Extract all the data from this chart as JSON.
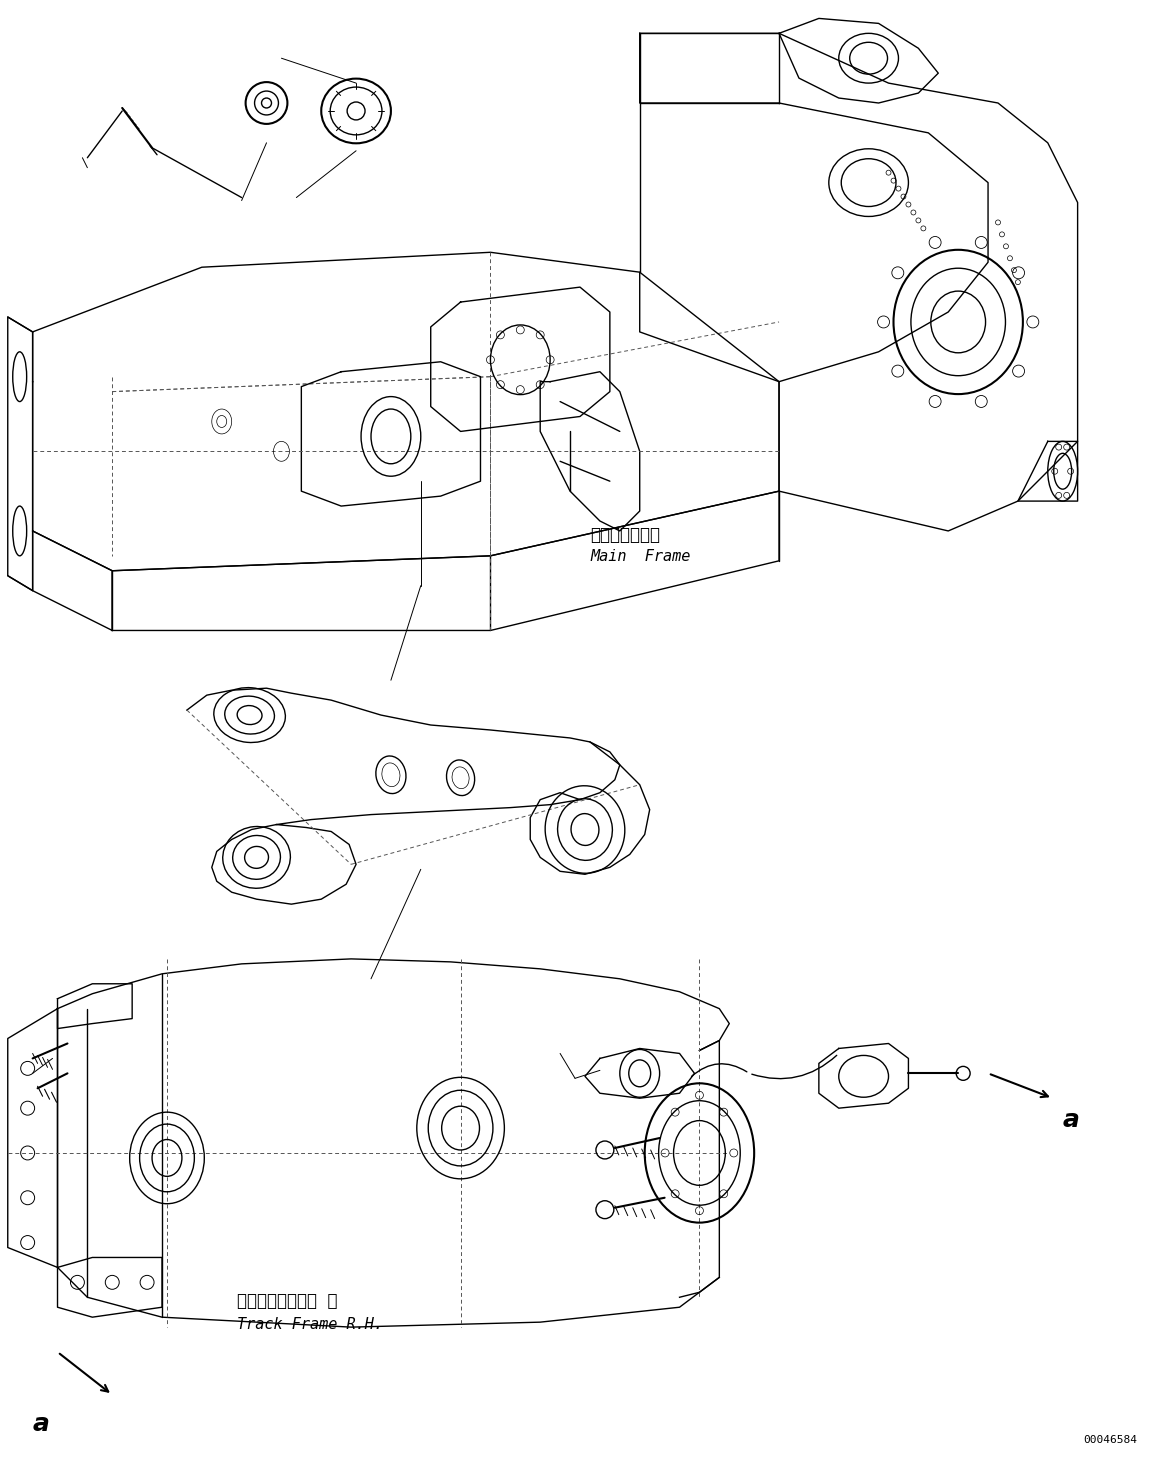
{
  "bg_color": "#ffffff",
  "line_color": "#000000",
  "label_main_frame_jp": "メインフレーム",
  "label_main_frame_en": "Main  Frame",
  "label_track_frame_jp": "トラックフレーム  右",
  "label_track_frame_en": "Track Frame R.H.",
  "label_a1": "a",
  "label_a2": "a",
  "part_number": "00046584",
  "figsize": [
    11.63,
    14.57
  ],
  "dpi": 100,
  "font_size_jp": 12,
  "font_size_en": 11,
  "font_size_a": 18,
  "font_size_pn": 8
}
